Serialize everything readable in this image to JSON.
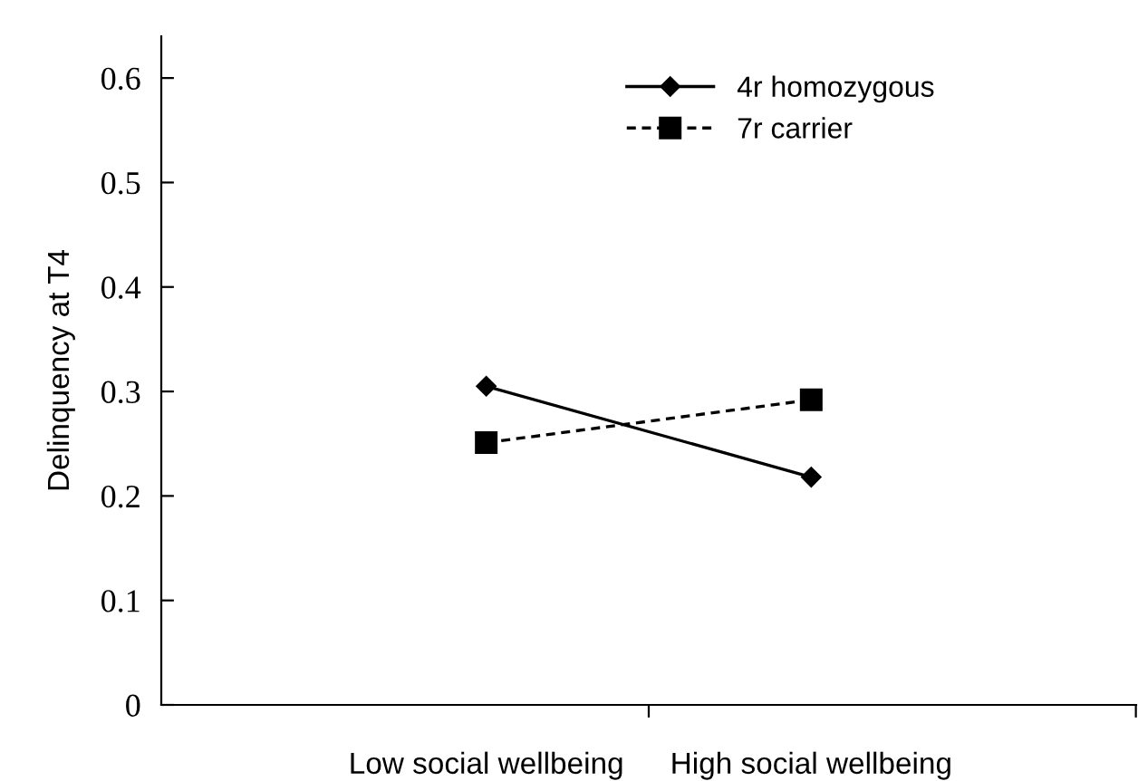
{
  "chart_data": {
    "type": "line",
    "ylabel": "Delinquency at T4",
    "categories": [
      "Low social wellbeing",
      "High social wellbeing"
    ],
    "series": [
      {
        "name": "4r homozygous",
        "color": "#000000",
        "values": [
          0.305,
          0.218
        ],
        "marker": "diamond",
        "line_style": "solid"
      },
      {
        "name": "7r carrier",
        "color": "#000000",
        "values": [
          0.251,
          0.292
        ],
        "marker": "square",
        "line_style": "dashed"
      }
    ],
    "ylim": [
      0,
      0.64
    ],
    "yticks": [
      0,
      0.1,
      0.2,
      0.3,
      0.4,
      0.5,
      0.6
    ],
    "grid": false,
    "legend": "top right"
  }
}
